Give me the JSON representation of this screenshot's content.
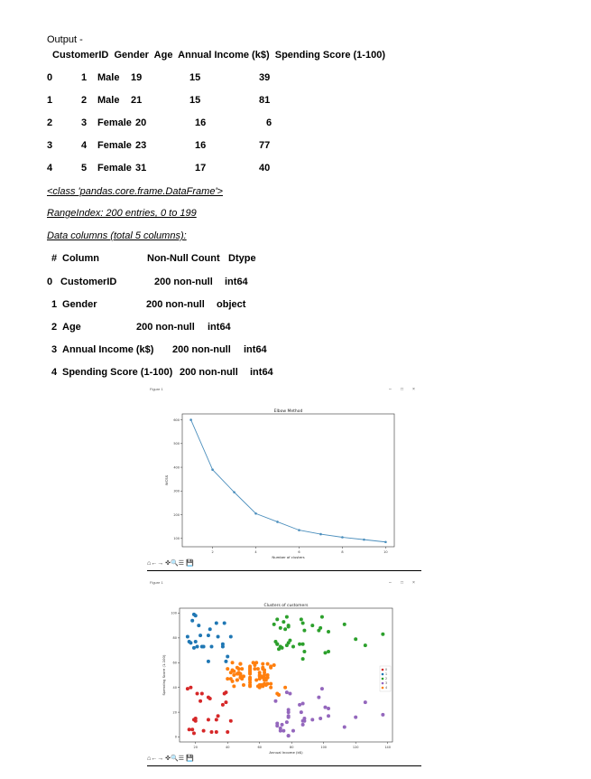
{
  "output_label": "Output -",
  "df_head": {
    "header": "CustomerID  Gender  Age  Annual Income (k$)  Spending Score (1-100)",
    "rows": [
      {
        "idx": "0",
        "id": "1",
        "gender": "Male",
        "age": "19",
        "income": "15",
        "score": "39"
      },
      {
        "idx": "1",
        "id": "2",
        "gender": "Male",
        "age": "21",
        "income": "15",
        "score": "81"
      },
      {
        "idx": "2",
        "id": "3",
        "gender": "Female",
        "age": "20",
        "income": "16",
        "score": "6"
      },
      {
        "idx": "3",
        "id": "4",
        "gender": "Female",
        "age": "23",
        "income": "16",
        "score": "77"
      },
      {
        "idx": "4",
        "id": "5",
        "gender": "Female",
        "age": "31",
        "income": "17",
        "score": "40"
      }
    ]
  },
  "info": {
    "class_line": "<class 'pandas.core.frame.DataFrame'>",
    "range_line": "RangeIndex: 200 entries, 0 to 199",
    "cols_line": "Data columns (total 5 columns):",
    "col_hash": "#",
    "col_header": "Column",
    "nonnull_header": "Non-Null Count",
    "dtype_header": "Dtype",
    "columns": [
      {
        "i": "0",
        "name": "CustomerID",
        "count": "200 non-null",
        "dtype": "int64"
      },
      {
        "i": "1",
        "name": "Gender",
        "count": "200 non-null",
        "dtype": "object"
      },
      {
        "i": "2",
        "name": "Age",
        "count": "200 non-null",
        "dtype": "int64"
      },
      {
        "i": "3",
        "name": "Annual Income (k$)",
        "count": "200 non-null",
        "dtype": "int64"
      },
      {
        "i": "4",
        "name": "Spending Score (1-100)",
        "count": "200 non-null",
        "dtype": "int64"
      }
    ]
  },
  "window": {
    "title": "Figure 1",
    "min_glyph": "–",
    "max_glyph": "□",
    "close_glyph": "×",
    "toolbar_glyphs": "⌂←→ ✜🔍☰ 💾"
  },
  "chart_data": [
    {
      "type": "line",
      "title": "Elbow Method",
      "xlabel": "Number of clusters",
      "ylabel": "WCSS",
      "x": [
        1,
        2,
        3,
        4,
        5,
        6,
        7,
        8,
        9,
        10
      ],
      "y": [
        600,
        390,
        295,
        205,
        170,
        135,
        118,
        105,
        95,
        85
      ],
      "xticks": [
        2,
        4,
        6,
        8,
        10
      ],
      "yticks": [
        100,
        200,
        300,
        400,
        500,
        600
      ],
      "xlim": [
        0.6,
        10.4
      ],
      "ylim": [
        65,
        625
      ],
      "color": "#4c8fbd"
    },
    {
      "type": "scatter",
      "title": "Clusters of customers",
      "xlabel": "Annual Income (k$)",
      "ylabel": "Spending Score (1-100)",
      "xticks": [
        20,
        40,
        60,
        80,
        100,
        120,
        140
      ],
      "yticks": [
        0,
        20,
        40,
        60,
        80,
        100
      ],
      "xlim": [
        10,
        143
      ],
      "ylim": [
        -4,
        104
      ],
      "legend": [
        "0",
        "1",
        "2",
        "3",
        "4"
      ],
      "colors": [
        "#d62728",
        "#1f77b4",
        "#2ca02c",
        "#9467bd",
        "#ff7f0e"
      ],
      "series": [
        {
          "name": "0",
          "points": [
            [
              15,
              39
            ],
            [
              16,
              6
            ],
            [
              17,
              40
            ],
            [
              18,
              6
            ],
            [
              19,
              3
            ],
            [
              19,
              14
            ],
            [
              20,
              15
            ],
            [
              20,
              13
            ],
            [
              21,
              35
            ],
            [
              23,
              29
            ],
            [
              24,
              35
            ],
            [
              25,
              5
            ],
            [
              28,
              14
            ],
            [
              28,
              32
            ],
            [
              29,
              31
            ],
            [
              30,
              4
            ],
            [
              33,
              4
            ],
            [
              33,
              14
            ],
            [
              34,
              17
            ],
            [
              37,
              26
            ],
            [
              38,
              35
            ],
            [
              39,
              36
            ],
            [
              39,
              28
            ],
            [
              40,
              4
            ],
            [
              42,
              13
            ]
          ]
        },
        {
          "name": "1",
          "points": [
            [
              15,
              81
            ],
            [
              16,
              77
            ],
            [
              17,
              76
            ],
            [
              18,
              94
            ],
            [
              19,
              72
            ],
            [
              19,
              99
            ],
            [
              20,
              77
            ],
            [
              20,
              98
            ],
            [
              21,
              73
            ],
            [
              23,
              82
            ],
            [
              24,
              73
            ],
            [
              25,
              73
            ],
            [
              28,
              82
            ],
            [
              28,
              61
            ],
            [
              29,
              87
            ],
            [
              30,
              73
            ],
            [
              33,
              92
            ],
            [
              34,
              81
            ],
            [
              37,
              75
            ],
            [
              38,
              92
            ],
            [
              39,
              61
            ],
            [
              40,
              65
            ],
            [
              42,
              81
            ],
            [
              37,
              73
            ],
            [
              22,
              90
            ]
          ]
        },
        {
          "name": "2",
          "points": [
            [
              69,
              91
            ],
            [
              70,
              77
            ],
            [
              71,
              95
            ],
            [
              71,
              75
            ],
            [
              71,
              75
            ],
            [
              72,
              71
            ],
            [
              73,
              88
            ],
            [
              73,
              73
            ],
            [
              74,
              72
            ],
            [
              75,
              93
            ],
            [
              76,
              87
            ],
            [
              77,
              74
            ],
            [
              77,
              97
            ],
            [
              78,
              90
            ],
            [
              78,
              76
            ],
            [
              78,
              89
            ],
            [
              79,
              78
            ],
            [
              81,
              73
            ],
            [
              85,
              75
            ],
            [
              86,
              95
            ],
            [
              87,
              63
            ],
            [
              87,
              75
            ],
            [
              87,
              92
            ],
            [
              88,
              86
            ],
            [
              88,
              69
            ],
            [
              93,
              90
            ],
            [
              97,
              86
            ],
            [
              98,
              88
            ],
            [
              99,
              97
            ],
            [
              101,
              68
            ],
            [
              103,
              85
            ],
            [
              103,
              69
            ],
            [
              113,
              91
            ],
            [
              120,
              79
            ],
            [
              126,
              74
            ],
            [
              137,
              83
            ]
          ]
        },
        {
          "name": "3",
          "points": [
            [
              70,
              29
            ],
            [
              71,
              11
            ],
            [
              71,
              9
            ],
            [
              72,
              34
            ],
            [
              73,
              5
            ],
            [
              73,
              7
            ],
            [
              74,
              10
            ],
            [
              75,
              5
            ],
            [
              77,
              12
            ],
            [
              77,
              36
            ],
            [
              78,
              22
            ],
            [
              78,
              17
            ],
            [
              78,
              20
            ],
            [
              78,
              16
            ],
            [
              78,
              1
            ],
            [
              78,
              1
            ],
            [
              79,
              35
            ],
            [
              81,
              5
            ],
            [
              85,
              26
            ],
            [
              86,
              20
            ],
            [
              87,
              27
            ],
            [
              87,
              13
            ],
            [
              87,
              10
            ],
            [
              88,
              13
            ],
            [
              88,
              15
            ],
            [
              93,
              14
            ],
            [
              97,
              32
            ],
            [
              98,
              15
            ],
            [
              99,
              39
            ],
            [
              101,
              24
            ],
            [
              103,
              17
            ],
            [
              103,
              23
            ],
            [
              113,
              8
            ],
            [
              120,
              16
            ],
            [
              126,
              28
            ],
            [
              137,
              18
            ]
          ]
        },
        {
          "name": "4",
          "points": [
            [
              40,
              55
            ],
            [
              40,
              47
            ],
            [
              42,
              52
            ],
            [
              43,
              60
            ],
            [
              43,
              54
            ],
            [
              43,
              45
            ],
            [
              44,
              41
            ],
            [
              44,
              50
            ],
            [
              46,
              46
            ],
            [
              46,
              51
            ],
            [
              46,
              46
            ],
            [
              46,
              56
            ],
            [
              47,
              55
            ],
            [
              47,
              52
            ],
            [
              48,
              59
            ],
            [
              48,
              51
            ],
            [
              48,
              59
            ],
            [
              48,
              50
            ],
            [
              48,
              48
            ],
            [
              48,
              59
            ],
            [
              49,
              47
            ],
            [
              49,
              55
            ],
            [
              50,
              42
            ],
            [
              50,
              49
            ],
            [
              54,
              56
            ],
            [
              54,
              47
            ],
            [
              54,
              54
            ],
            [
              54,
              53
            ],
            [
              54,
              48
            ],
            [
              54,
              52
            ],
            [
              54,
              42
            ],
            [
              54,
              51
            ],
            [
              54,
              55
            ],
            [
              54,
              41
            ],
            [
              54,
              44
            ],
            [
              54,
              57
            ],
            [
              54,
              46
            ],
            [
              57,
              58
            ],
            [
              57,
              55
            ],
            [
              58,
              60
            ],
            [
              58,
              46
            ],
            [
              59,
              55
            ],
            [
              59,
              41
            ],
            [
              60,
              49
            ],
            [
              60,
              40
            ],
            [
              60,
              42
            ],
            [
              60,
              52
            ],
            [
              60,
              47
            ],
            [
              60,
              50
            ],
            [
              61,
              42
            ],
            [
              61,
              49
            ],
            [
              62,
              41
            ],
            [
              62,
              48
            ],
            [
              62,
              59
            ],
            [
              62,
              55
            ],
            [
              62,
              56
            ],
            [
              62,
              42
            ],
            [
              63,
              50
            ],
            [
              63,
              46
            ],
            [
              63,
              43
            ],
            [
              63,
              48
            ],
            [
              63,
              52
            ],
            [
              63,
              54
            ],
            [
              64,
              42
            ],
            [
              64,
              46
            ],
            [
              65,
              48
            ],
            [
              65,
              50
            ],
            [
              65,
              43
            ],
            [
              65,
              59
            ],
            [
              67,
              43
            ],
            [
              67,
              57
            ],
            [
              67,
              56
            ],
            [
              67,
              40
            ],
            [
              69,
              58
            ],
            [
              71,
              35
            ],
            [
              72,
              34
            ],
            [
              76,
              40
            ],
            [
              42,
              47
            ],
            [
              44,
              53
            ],
            [
              56,
              60
            ]
          ]
        }
      ]
    }
  ]
}
